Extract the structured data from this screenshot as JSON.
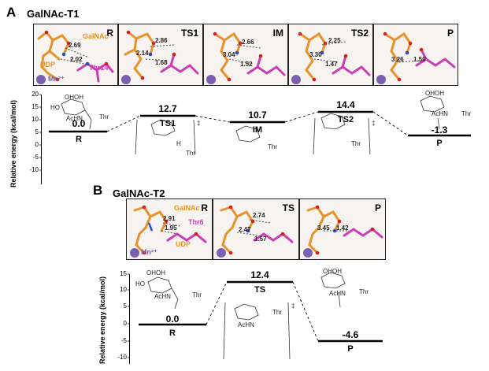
{
  "panelA": {
    "letter": "A",
    "title": "GalNAc-T1",
    "snapshots": [
      {
        "label": "R",
        "distances": [
          "2.69",
          "2.02"
        ],
        "labels": [
          "GalNAc",
          "UDP",
          "Thr14",
          "Mn²⁺"
        ]
      },
      {
        "label": "TS1",
        "distances": [
          "2.86",
          "2.14",
          "1.68"
        ]
      },
      {
        "label": "IM",
        "distances": [
          "2.66",
          "3.04",
          "1.52"
        ]
      },
      {
        "label": "TS2",
        "distances": [
          "2.25",
          "3.30",
          "1.47"
        ]
      },
      {
        "label": "P",
        "distances": [
          "3.26",
          "1.50"
        ]
      }
    ],
    "axis": {
      "ylabel": "Relative energy (kcal/mol)",
      "ticks": [
        "20",
        "15",
        "10",
        "5",
        "0",
        "-5",
        "-10"
      ]
    },
    "levels": [
      {
        "state": "R",
        "energy": "0.0"
      },
      {
        "state": "TS1",
        "energy": "12.7"
      },
      {
        "state": "IM",
        "energy": "10.7"
      },
      {
        "state": "TS2",
        "energy": "14.4"
      },
      {
        "state": "P",
        "energy": "-1.3"
      }
    ],
    "chem_text": {
      "thr": "Thr",
      "achn": "AcHN",
      "ho": "HO",
      "ohoh": "OHOH",
      "h": "H",
      "ddagger": "‡"
    }
  },
  "panelB": {
    "letter": "B",
    "title": "GalNAc-T2",
    "snapshots": [
      {
        "label": "R",
        "distances": [
          "2.91",
          "1.95"
        ],
        "labels": [
          "GalNAc",
          "Thr6",
          "UDP",
          "Mn²⁺"
        ]
      },
      {
        "label": "TS",
        "distances": [
          "2.74",
          "2.47",
          "1.57"
        ]
      },
      {
        "label": "P",
        "distances": [
          "3.45",
          "1.42"
        ]
      }
    ],
    "axis": {
      "ylabel": "Relative energy (kcal/mol)",
      "ticks": [
        "15",
        "10",
        "5",
        "0",
        "-5",
        "-10"
      ]
    },
    "levels": [
      {
        "state": "R",
        "energy": "0.0"
      },
      {
        "state": "TS",
        "energy": "12.4"
      },
      {
        "state": "P",
        "energy": "-4.6"
      }
    ],
    "chem_text": {
      "thr": "Thr",
      "achn": "AcHN",
      "ho": "HO",
      "ohoh": "OHOH",
      "ddagger": "‡"
    }
  }
}
